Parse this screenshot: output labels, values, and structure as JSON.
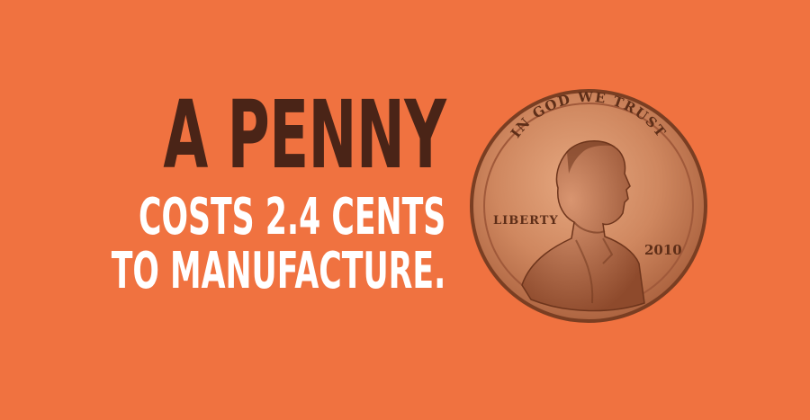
{
  "headline": "A PENNY",
  "subline_1": "COSTS 2.4 CENTS",
  "subline_2": "TO MANUFACTURE.",
  "coin": {
    "motto": "IN GOD WE TRUST",
    "liberty": "LIBERTY",
    "year": "2010"
  },
  "colors": {
    "background": "#f07240",
    "headline": "#4a2417",
    "subline": "#ffffff",
    "copper": "#c9805a"
  }
}
